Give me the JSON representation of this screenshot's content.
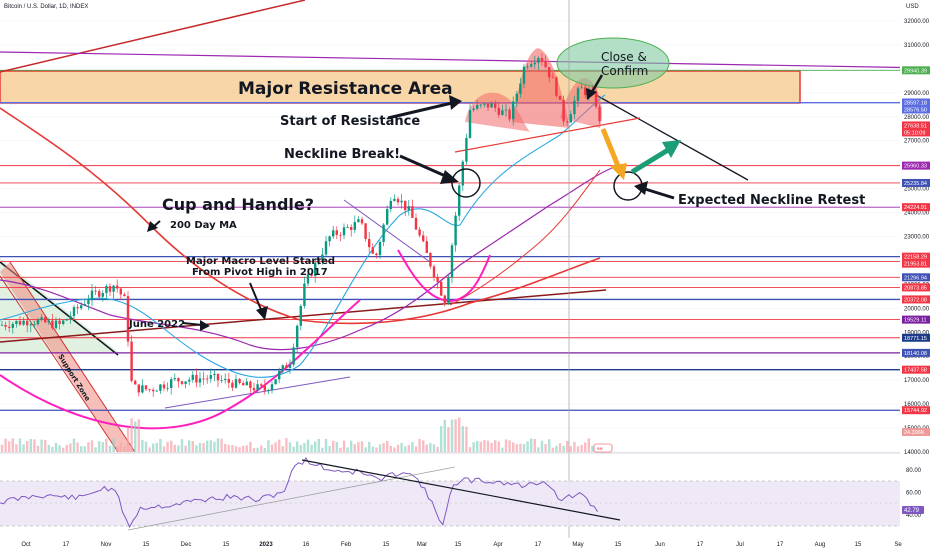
{
  "header": {
    "title": "Bitcoin / U.S. Dollar, 1D, INDEX",
    "currency": "USD"
  },
  "colors": {
    "up": "#089981",
    "down": "#f23645",
    "resistance_fill": "#f7c889",
    "rsi": "#7e57c2",
    "ellipse": "#7fc9a0",
    "arrow_orange": "#f5a623",
    "arrow_teal": "#1b9e77"
  },
  "chart_data": [
    {
      "type": "candlestick",
      "title": "Bitcoin / U.S. Dollar, 1D, INDEX",
      "y_axis_ticks": [
        "32000.00",
        "31000.00",
        "30000.00",
        "29000.00",
        "28000.00",
        "27000.00",
        "26000.00",
        "25000.00",
        "24000.00",
        "23000.00",
        "22000.00",
        "21000.00",
        "20000.00",
        "19000.00",
        "18000.00",
        "17000.00",
        "16000.00",
        "15000.00",
        "14000.00"
      ],
      "x_axis_ticks": [
        "Oct",
        "17",
        "Nov",
        "15",
        "Dec",
        "15",
        "2023",
        "16",
        "Feb",
        "15",
        "Mar",
        "15",
        "Apr",
        "17",
        "May",
        "15",
        "Jun",
        "17",
        "Jul",
        "17",
        "Aug",
        "15",
        "Se"
      ],
      "price_labels": [
        {
          "value": "29940.39",
          "color": "#4caf50"
        },
        {
          "value": "28597.18",
          "color": "#5b6ee1"
        },
        {
          "value": "28576.50",
          "color": "#5b6ee1"
        },
        {
          "value": "27638.51",
          "color": "#f23645"
        },
        {
          "value": "05:10:09",
          "color": "#f23645"
        },
        {
          "value": "25960.33",
          "color": "#9c27b0"
        },
        {
          "value": "25235.84",
          "color": "#3f51b5"
        },
        {
          "value": "24224.91",
          "color": "#f23645"
        },
        {
          "value": "22158.29",
          "color": "#f23645"
        },
        {
          "value": "21953.81",
          "color": "#f23645"
        },
        {
          "value": "21296.94",
          "color": "#3f51b5"
        },
        {
          "value": "20873.85",
          "color": "#f23645"
        },
        {
          "value": "20372.08",
          "color": "#f23645"
        },
        {
          "value": "19529.11",
          "color": "#7b1fa2"
        },
        {
          "value": "18771.15",
          "color": "#1e3a8a"
        },
        {
          "value": "18140.08",
          "color": "#3f51b5"
        },
        {
          "value": "17437.58",
          "color": "#f23645"
        },
        {
          "value": "15744.92",
          "color": "#f23645"
        },
        {
          "value": "24.396K",
          "color": "#ef9a9a"
        }
      ],
      "horizontal_levels": [
        29940.39,
        28597.18,
        28576.5,
        25960.33,
        25235.84,
        24224.91,
        22158.29,
        21953.81,
        21296.94,
        20873.85,
        20372.08,
        19529.11,
        18771.15,
        18140.08,
        17437.58,
        15744.92
      ],
      "resistance_zone": [
        28597.18,
        29940.39
      ],
      "annotations": {
        "major_resistance": "Major Resistance Area",
        "close_confirm_1": "Close &",
        "close_confirm_2": "Confirm",
        "start_resistance": "Start of Resistance",
        "neckline_break": "Neckline Break!",
        "cup_handle": "Cup and Handle?",
        "ma200": "200 Day MA",
        "macro_1": "Major Macro Level Started",
        "macro_2": "From Pivot High in 2017",
        "june": "June 2022",
        "support": "Support Zone",
        "expected": "Expected Neckline Retest"
      }
    },
    {
      "type": "line",
      "title": "RSI",
      "y_axis_ticks": [
        "80.00",
        "60.00",
        "40.00"
      ],
      "last_value": "42.79",
      "band": [
        30,
        70
      ]
    }
  ]
}
